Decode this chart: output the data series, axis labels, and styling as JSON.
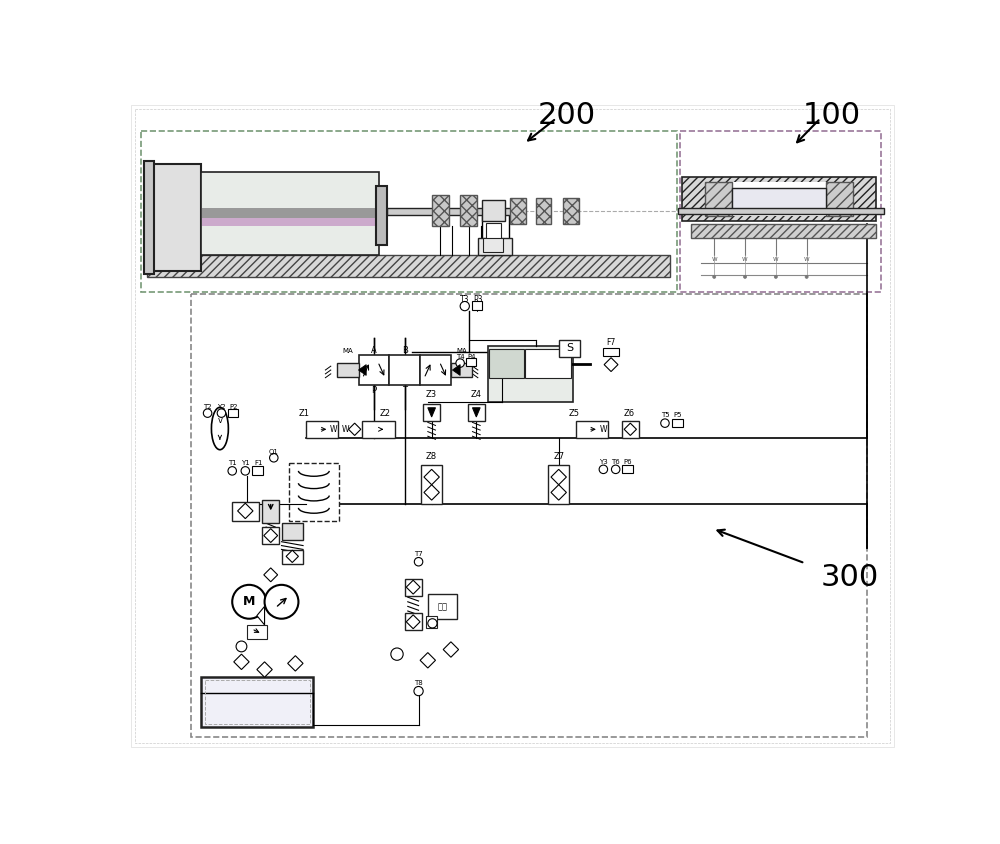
{
  "bg": "#ffffff",
  "lc": "#222222",
  "dc": "#888888",
  "hc": "#555555",
  "label_200": "200",
  "label_100": "100",
  "label_300": "300",
  "box200_color": "#999999",
  "box100_color": "#999999",
  "box300_color": "#888888",
  "purple": "#ccaacc",
  "gray_fill": "#cccccc",
  "light_gray": "#e8e8e8",
  "hatch_gray": "#d0d0d0"
}
